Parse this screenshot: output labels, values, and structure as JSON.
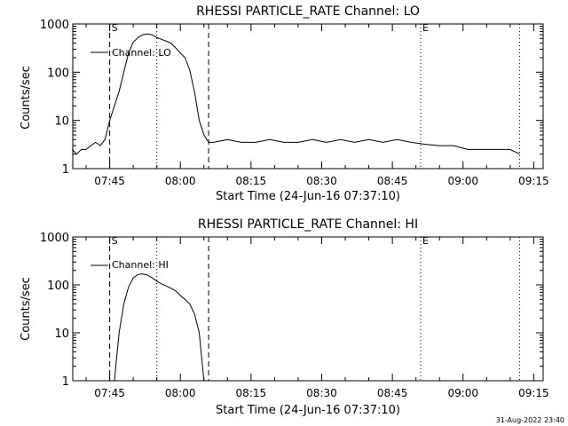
{
  "footer_timestamp": "31-Aug-2022 23:40",
  "chart_data": [
    {
      "type": "line",
      "title": "RHESSI PARTICLE_RATE Channel: LO",
      "xlabel": "Start Time (24-Jun-16 07:37:10)",
      "ylabel": "Counts/sec",
      "yscale": "log",
      "ylim": [
        1,
        1000
      ],
      "xlim": [
        "07:37:10",
        "09:17:00"
      ],
      "xticks": [
        "07:45",
        "08:00",
        "08:15",
        "08:30",
        "08:45",
        "09:00",
        "09:15"
      ],
      "yticks": [
        "1",
        "10",
        "100",
        "1000"
      ],
      "legend": {
        "entry": "Channel: LO",
        "placement": "top-left"
      },
      "markers": [
        {
          "time": "07:45",
          "style": "dashed",
          "label": "S"
        },
        {
          "time": "07:55",
          "style": "dotted",
          "label": ""
        },
        {
          "time": "08:06",
          "style": "dashed",
          "label": ""
        },
        {
          "time": "08:51",
          "style": "dotted",
          "label": "E"
        },
        {
          "time": "09:12",
          "style": "dotted",
          "label": ""
        }
      ],
      "series": [
        {
          "x": [
            "07:37",
            "07:38",
            "07:39",
            "07:40",
            "07:41",
            "07:42",
            "07:43",
            "07:44",
            "07:45",
            "07:46",
            "07:47",
            "07:48",
            "07:49",
            "07:50",
            "07:51",
            "07:52",
            "07:53",
            "07:54",
            "07:55",
            "07:56",
            "07:57",
            "07:58",
            "07:59",
            "08:00",
            "08:01",
            "08:02",
            "08:03",
            "08:04",
            "08:05",
            "08:06",
            "08:07",
            "08:10",
            "08:13",
            "08:16",
            "08:19",
            "08:22",
            "08:25",
            "08:28",
            "08:31",
            "08:34",
            "08:37",
            "08:40",
            "08:43",
            "08:46",
            "08:49",
            "08:52",
            "08:55",
            "08:58",
            "09:01",
            "09:04",
            "09:07",
            "09:10",
            "09:12"
          ],
          "values": [
            2.5,
            2,
            2.5,
            2.5,
            3,
            3.5,
            3,
            4,
            10,
            20,
            40,
            100,
            250,
            420,
            520,
            600,
            620,
            600,
            520,
            480,
            440,
            400,
            320,
            250,
            200,
            110,
            40,
            10,
            5,
            3.5,
            3.5,
            4,
            3.5,
            3.5,
            4,
            3.5,
            3.5,
            4,
            3.5,
            4,
            3.5,
            4,
            3.5,
            4,
            3.5,
            3.2,
            3,
            3,
            2.5,
            2.5,
            2.5,
            2.5,
            2
          ]
        }
      ]
    },
    {
      "type": "line",
      "title": "RHESSI PARTICLE_RATE Channel: HI",
      "xlabel": "Start Time (24-Jun-16 07:37:10)",
      "ylabel": "Counts/sec",
      "yscale": "log",
      "ylim": [
        1,
        1000
      ],
      "xlim": [
        "07:37:10",
        "09:17:00"
      ],
      "xticks": [
        "07:45",
        "08:00",
        "08:15",
        "08:30",
        "08:45",
        "09:00",
        "09:15"
      ],
      "yticks": [
        "1",
        "10",
        "100",
        "1000"
      ],
      "legend": {
        "entry": "Channel: HI",
        "placement": "top-left"
      },
      "markers": [
        {
          "time": "07:45",
          "style": "dashed",
          "label": "S"
        },
        {
          "time": "07:55",
          "style": "dotted",
          "label": ""
        },
        {
          "time": "08:06",
          "style": "dashed",
          "label": ""
        },
        {
          "time": "08:51",
          "style": "dotted",
          "label": "E"
        },
        {
          "time": "09:12",
          "style": "dotted",
          "label": ""
        }
      ],
      "series": [
        {
          "x": [
            "07:46",
            "07:47",
            "07:48",
            "07:49",
            "07:50",
            "07:51",
            "07:52",
            "07:53",
            "07:54",
            "07:55",
            "07:56",
            "07:57",
            "07:58",
            "07:59",
            "08:00",
            "08:01",
            "08:02",
            "08:03",
            "08:04",
            "08:05"
          ],
          "values": [
            1,
            10,
            40,
            90,
            140,
            165,
            170,
            160,
            140,
            120,
            105,
            95,
            85,
            75,
            60,
            50,
            40,
            25,
            10,
            1
          ]
        }
      ]
    }
  ]
}
